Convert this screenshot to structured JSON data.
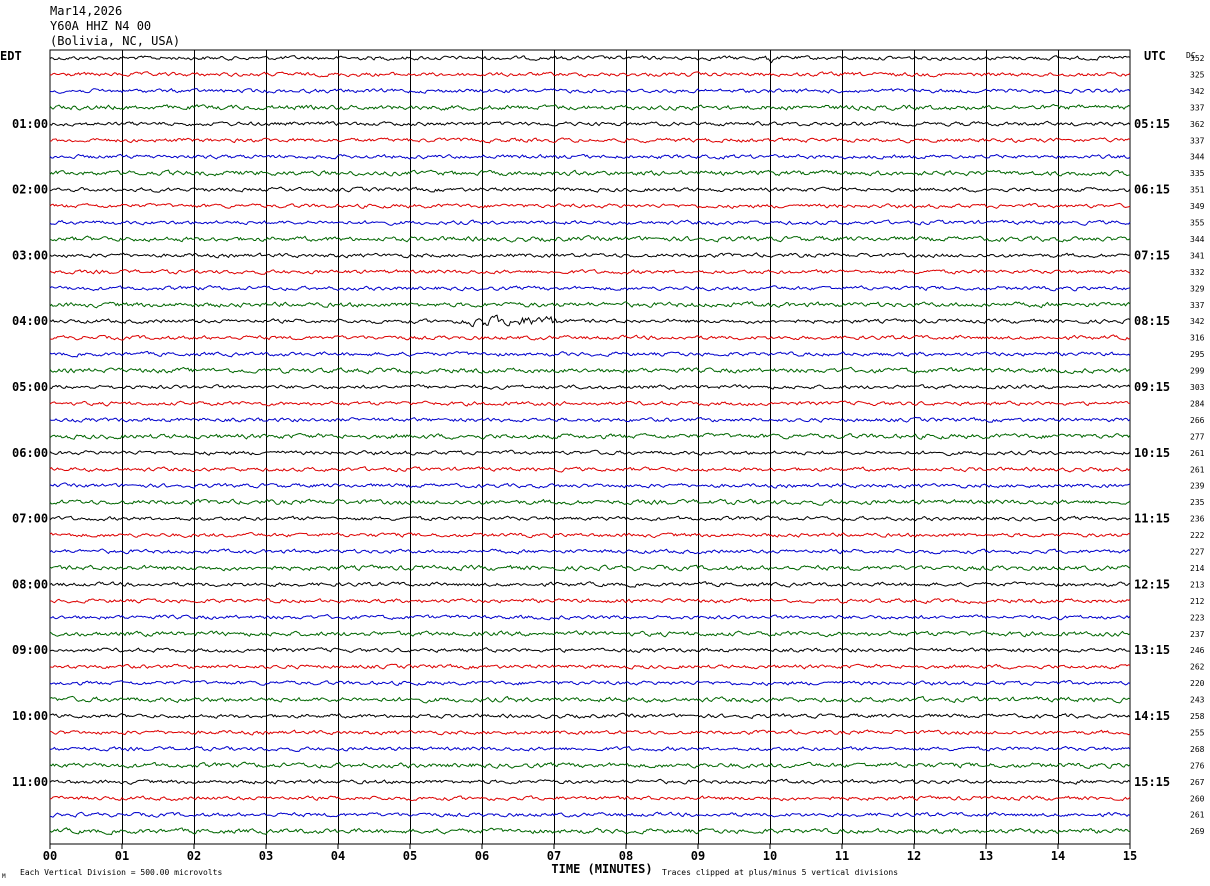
{
  "header": {
    "date": "Mar14,2026",
    "station": "Y60A HHZ N4 00",
    "location": "(Bolivia, NC, USA)"
  },
  "left_tz": "EDT",
  "right_tz": "UTC",
  "dc_label": "DC",
  "footer": {
    "scale_note": "Each Vertical Division =  500.00 microvolts",
    "clip_note": "Traces clipped at plus/minus 5 vertical divisions",
    "corner_mark": "M"
  },
  "colors": {
    "trace": [
      "#000000",
      "#dd0000",
      "#0000cc",
      "#006600"
    ],
    "grid": "#000000"
  },
  "chart_data": {
    "type": "line",
    "xlabel": "TIME (MINUTES)",
    "x_ticks": [
      "00",
      "01",
      "02",
      "03",
      "04",
      "05",
      "06",
      "07",
      "08",
      "09",
      "10",
      "11",
      "12",
      "13",
      "14",
      "15"
    ],
    "xlim": [
      0,
      15
    ],
    "left_hour_labels": [
      "01:00",
      "02:00",
      "03:00",
      "04:00",
      "05:00",
      "06:00",
      "07:00",
      "08:00",
      "09:00",
      "10:00",
      "11:00"
    ],
    "right_hour_labels": [
      "05:15",
      "06:15",
      "07:15",
      "08:15",
      "09:15",
      "10:15",
      "11:15",
      "12:15",
      "13:15",
      "14:15",
      "15:15"
    ],
    "rows_per_hour": 4,
    "dc_offsets": [
      352,
      325,
      342,
      337,
      362,
      337,
      344,
      335,
      351,
      349,
      355,
      344,
      341,
      332,
      329,
      337,
      342,
      316,
      295,
      299,
      303,
      284,
      266,
      277,
      261,
      261,
      239,
      235,
      236,
      222,
      227,
      214,
      213,
      212,
      223,
      237,
      246,
      262,
      220,
      243,
      258,
      255,
      268,
      276,
      267,
      260,
      261,
      269
    ],
    "events": [
      {
        "row": 16,
        "minute": 6.4,
        "note": "burst"
      },
      {
        "row": 0,
        "minute": 10.0,
        "note": "spike"
      }
    ]
  }
}
